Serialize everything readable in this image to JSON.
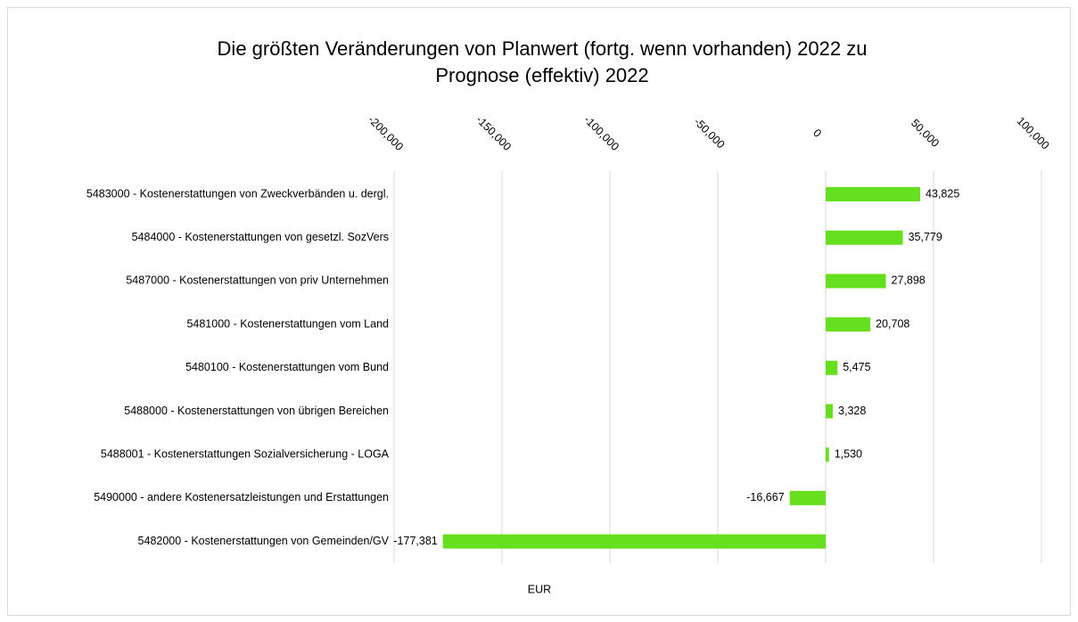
{
  "chart_data": {
    "type": "barh",
    "title": [
      "Die größten Veränderungen von Planwert (fortg. wenn vorhanden) 2022 zu",
      "Prognose (effektiv) 2022"
    ],
    "xlabel": "EUR",
    "categories": [
      "5483000 - Kostenerstattungen von Zweckverbänden u. dergl.",
      "5484000 - Kostenerstattungen von gesetzl. SozVers",
      "5487000 - Kostenerstattungen von priv Unternehmen",
      "5481000 - Kostenerstattungen vom Land",
      "5480100 - Kostenerstattungen vom Bund",
      "5488000 - Kostenerstattungen von übrigen Bereichen",
      "5488001 - Kostenerstattungen Sozialversicherung - LOGA",
      "5490000 - andere Kostenersatzleistungen und Erstattungen",
      "5482000 - Kostenerstattungen von Gemeinden/GV"
    ],
    "values": [
      43825,
      35779,
      27898,
      20708,
      5475,
      3328,
      1530,
      -16667,
      -177381
    ],
    "value_labels": [
      "43,825",
      "35,779",
      "27,898",
      "20,708",
      "5,475",
      "3,328",
      "1,530",
      "-16,667",
      "-177,381"
    ],
    "color": "#66e01e",
    "xlim": [
      -200000,
      100000
    ],
    "xticks": [
      {
        "value": -200000,
        "label": "-200,000"
      },
      {
        "value": -150000,
        "label": "-150,000"
      },
      {
        "value": -100000,
        "label": "-100,000"
      },
      {
        "value": -50000,
        "label": "-50,000"
      },
      0,
      {
        "value": 50000,
        "label": "50,000"
      },
      {
        "value": 100000,
        "label": "100,000"
      }
    ],
    "grid": true
  }
}
